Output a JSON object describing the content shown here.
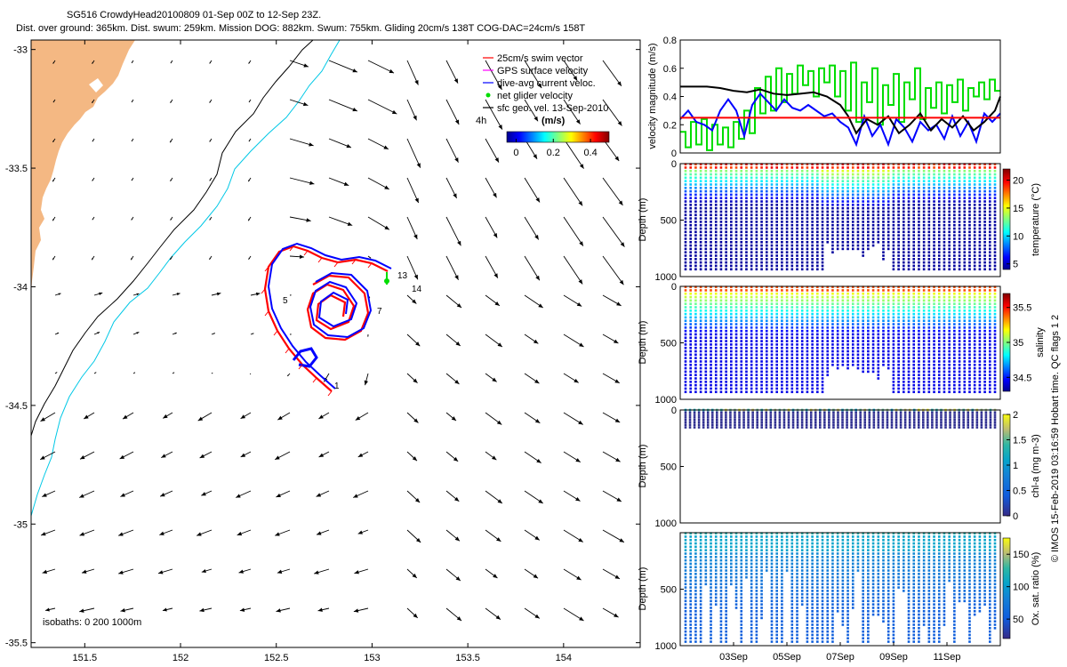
{
  "header": {
    "title_line1": "SG516 CrowdyHead20100809 01-Sep 00Z to 12-Sep 23Z.",
    "title_line2": "Dist. over ground: 365km. Dist. swum: 259km. Mission DOG: 882km. Swum: 755km. Gliding 20cm/s 138T COG-DAC=24cm/s 158T"
  },
  "colors": {
    "land": "#f4b883",
    "swim": "#ff0000",
    "gps": "#ff00ff",
    "dac": "#0000ff",
    "net": "#00dd00",
    "coast_line": "#000000",
    "isobath_200": "#00c8e6",
    "speed_black": "#000000",
    "speed_red": "#ff0000"
  },
  "chart_data": [
    {
      "id": "map",
      "type": "quiver",
      "xticks": [
        "151.5",
        "152",
        "152.5",
        "153",
        "153.5",
        "154"
      ],
      "xtick_values": [
        151.5,
        152,
        152.5,
        153,
        153.5,
        154
      ],
      "yticks": [
        "-33",
        "-33.5",
        "-34",
        "-34.5",
        "-35",
        "-35.5"
      ],
      "ytick_values": [
        -33,
        -33.5,
        -34,
        -34.5,
        -35,
        -35.5
      ],
      "xlim": [
        151.22,
        154.4
      ],
      "ylim": [
        -35.52,
        -32.96
      ],
      "legend": [
        {
          "label": "25cm/s swim vector",
          "color": "#ff0000",
          "marker": "line"
        },
        {
          "label": "GPS surface velocity",
          "color": "#ff00ff",
          "marker": "line"
        },
        {
          "label": "dive-avg current veloc.",
          "color": "#0000ff",
          "marker": "line"
        },
        {
          "label": "net glider velocity",
          "color": "#00dd00",
          "marker": "dot"
        },
        {
          "label": "sfc geo. vel. 13-Sep-2010",
          "color": "#000000",
          "marker": "line"
        }
      ],
      "legend_placement": "top-right",
      "colorbar": {
        "label": "(m/s)",
        "ticks": [
          "0",
          "0.2",
          "0.4"
        ],
        "tick_values": [
          0,
          0.2,
          0.4
        ],
        "range": [
          -0.05,
          0.5
        ]
      },
      "scale_label": "4h",
      "isobath_label": "isobaths: 0  200  1000m",
      "track_labels": [
        "13",
        "14",
        "5",
        "7",
        "1"
      ]
    },
    {
      "id": "velocity",
      "type": "line",
      "ylabel": "velocity magnitude (m/s)",
      "yticks": [
        "0",
        "0.2",
        "0.4",
        "0.6",
        "0.8"
      ],
      "ytick_values": [
        0,
        0.2,
        0.4,
        0.6,
        0.8
      ],
      "ylim": [
        0,
        0.8
      ],
      "xlim": [
        1,
        13
      ],
      "series": [
        {
          "color": "#00dd00",
          "step": true,
          "x": [
            1,
            1.2,
            1.4,
            1.6,
            1.8,
            2,
            2.2,
            2.4,
            2.6,
            2.8,
            3,
            3.2,
            3.4,
            3.6,
            3.8,
            4,
            4.2,
            4.4,
            4.6,
            4.8,
            5,
            5.2,
            5.4,
            5.6,
            5.8,
            6,
            6.2,
            6.4,
            6.6,
            6.8,
            7,
            7.2,
            7.4,
            7.6,
            7.8,
            8,
            8.2,
            8.4,
            8.6,
            8.8,
            9,
            9.2,
            9.4,
            9.6,
            9.8,
            10,
            10.2,
            10.4,
            10.6,
            10.8,
            11,
            11.2,
            11.4,
            11.6,
            11.8,
            12,
            12.2,
            12.4,
            12.6,
            12.8
          ],
          "y": [
            0.15,
            0.04,
            0.22,
            0.06,
            0.24,
            0.02,
            0.2,
            0.06,
            0.18,
            0.04,
            0.22,
            0.1,
            0.3,
            0.14,
            0.46,
            0.28,
            0.54,
            0.3,
            0.6,
            0.36,
            0.56,
            0.42,
            0.62,
            0.48,
            0.58,
            0.4,
            0.6,
            0.5,
            0.62,
            0.4,
            0.58,
            0.3,
            0.64,
            0.22,
            0.5,
            0.36,
            0.6,
            0.2,
            0.48,
            0.34,
            0.56,
            0.22,
            0.5,
            0.38,
            0.6,
            0.24,
            0.46,
            0.32,
            0.5,
            0.28,
            0.48,
            0.36,
            0.52,
            0.3,
            0.46,
            0.4,
            0.5,
            0.38,
            0.52,
            0.44
          ]
        },
        {
          "color": "#0000ff",
          "step": false,
          "x": [
            1,
            1.3,
            1.6,
            1.9,
            2.2,
            2.5,
            2.8,
            3.1,
            3.4,
            3.7,
            4,
            4.3,
            4.6,
            4.9,
            5.2,
            5.5,
            5.8,
            6.1,
            6.4,
            6.7,
            7,
            7.3,
            7.6,
            7.9,
            8.2,
            8.5,
            8.8,
            9.1,
            9.4,
            9.7,
            10,
            10.3,
            10.6,
            10.9,
            11.2,
            11.5,
            11.8,
            12.1,
            12.4,
            12.7,
            13
          ],
          "y": [
            0.24,
            0.3,
            0.22,
            0.2,
            0.16,
            0.3,
            0.38,
            0.3,
            0.12,
            0.34,
            0.42,
            0.36,
            0.3,
            0.38,
            0.32,
            0.3,
            0.34,
            0.3,
            0.26,
            0.28,
            0.22,
            0.18,
            0.06,
            0.26,
            0.12,
            0.2,
            0.06,
            0.24,
            0.18,
            0.08,
            0.22,
            0.16,
            0.2,
            0.1,
            0.26,
            0.12,
            0.22,
            0.08,
            0.28,
            0.22,
            0.28
          ]
        },
        {
          "color": "#000000",
          "step": false,
          "x": [
            1,
            1.5,
            2,
            2.5,
            3,
            3.5,
            4,
            4.5,
            5,
            5.5,
            6,
            6.5,
            7,
            7.3,
            7.6,
            8,
            8.4,
            8.8,
            9.2,
            9.6,
            10,
            10.4,
            10.8,
            11.2,
            11.6,
            12,
            12.4,
            12.8,
            13
          ],
          "y": [
            0.47,
            0.47,
            0.47,
            0.46,
            0.44,
            0.43,
            0.45,
            0.42,
            0.41,
            0.42,
            0.43,
            0.4,
            0.34,
            0.26,
            0.14,
            0.24,
            0.2,
            0.26,
            0.14,
            0.2,
            0.28,
            0.16,
            0.24,
            0.18,
            0.26,
            0.16,
            0.22,
            0.3,
            0.4
          ]
        },
        {
          "color": "#ff0000",
          "step": false,
          "x": [
            1,
            13
          ],
          "y": [
            0.25,
            0.25
          ]
        }
      ]
    },
    {
      "id": "temperature",
      "type": "scatter-section",
      "ylabel": "Depth (m)",
      "colorbar_label": "temperature (°C)",
      "colorbar_ticks": [
        "20",
        "15",
        "10",
        "5"
      ],
      "colorbar_tick_values": [
        20,
        15,
        10,
        5
      ],
      "crange": [
        4,
        22
      ],
      "yticks": [
        "0",
        "500",
        "1000"
      ],
      "ytick_values": [
        0,
        500,
        1000
      ],
      "ylim": [
        0,
        1000
      ]
    },
    {
      "id": "salinity",
      "type": "scatter-section",
      "ylabel": "Depth (m)",
      "colorbar_label": "salinity",
      "colorbar_ticks": [
        "35.5",
        "35",
        "34.5"
      ],
      "colorbar_tick_values": [
        35.5,
        35,
        34.5
      ],
      "crange": [
        34.3,
        35.7
      ],
      "yticks": [
        "0",
        "500",
        "1000"
      ],
      "ytick_values": [
        0,
        500,
        1000
      ],
      "ylim": [
        0,
        1000
      ]
    },
    {
      "id": "chla",
      "type": "scatter-section",
      "ylabel": "Depth (m)",
      "colorbar_label": "chl-a (mg m-3)",
      "colorbar_ticks": [
        "2",
        "1.5",
        "1",
        "0.5",
        "0"
      ],
      "colorbar_tick_values": [
        2,
        1.5,
        1,
        0.5,
        0
      ],
      "crange": [
        0,
        2
      ],
      "yticks": [
        "0",
        "500",
        "1000"
      ],
      "ytick_values": [
        0,
        500,
        1000
      ],
      "ylim": [
        0,
        1000
      ]
    },
    {
      "id": "oxygen",
      "type": "scatter-section",
      "ylabel": "Depth (m)",
      "colorbar_label": "Ox. sat. ratio (%)",
      "colorbar_ticks": [
        "150",
        "100",
        "50"
      ],
      "colorbar_tick_values": [
        150,
        100,
        50
      ],
      "crange": [
        20,
        175
      ],
      "yticks": [
        "500",
        "1000"
      ],
      "ytick_values": [
        500,
        1000
      ],
      "ylim": [
        0,
        1000
      ],
      "xticks": [
        "03Sep",
        "05Sep",
        "07Sep",
        "09Sep",
        "11Sep"
      ],
      "xtick_values": [
        3,
        5,
        7,
        9,
        11
      ],
      "xlim": [
        1,
        13
      ]
    }
  ],
  "footer": {
    "side_note": "© IMOS 15-Feb-2019 03:16:59 Hobart time. QC flags 1  2"
  }
}
